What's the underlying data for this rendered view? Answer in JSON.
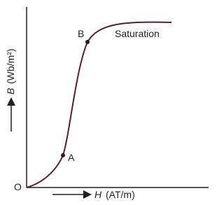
{
  "diagram": {
    "y_axis": {
      "symbol": "B",
      "unit": "(Wb/m²)"
    },
    "x_axis": {
      "symbol": "H",
      "unit": "(AT/m)"
    },
    "origin": "O",
    "points": [
      {
        "label": "A"
      },
      {
        "label": "B"
      }
    ],
    "annotation": "Saturation"
  }
}
